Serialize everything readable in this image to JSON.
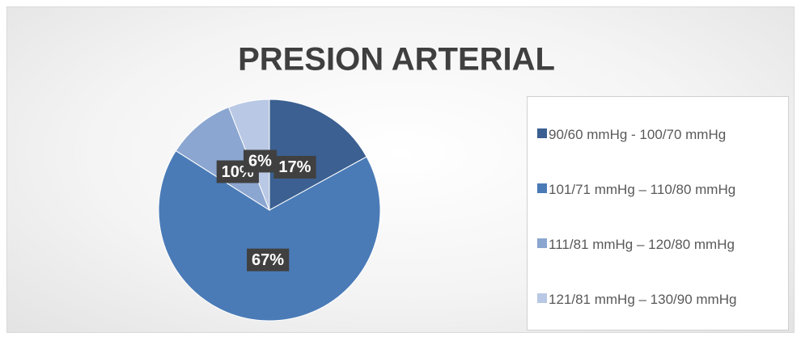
{
  "chart_data": {
    "type": "pie",
    "title": "PRESION ARTERIAL",
    "categories": [
      "90/60 mmHg - 100/70 mmHg",
      "101/71 mmHg – 110/80 mmHg",
      "111/81 mmHg – 120/80 mmHg",
      "121/81 mmHg – 130/90 mmHg"
    ],
    "values": [
      17,
      67,
      10,
      6
    ],
    "value_labels": [
      "17%",
      "67%",
      "10%",
      "6%"
    ],
    "colors": [
      "#3b6091",
      "#4a7bb7",
      "#8ba6d0",
      "#b9c8e4"
    ],
    "legend": "right"
  }
}
